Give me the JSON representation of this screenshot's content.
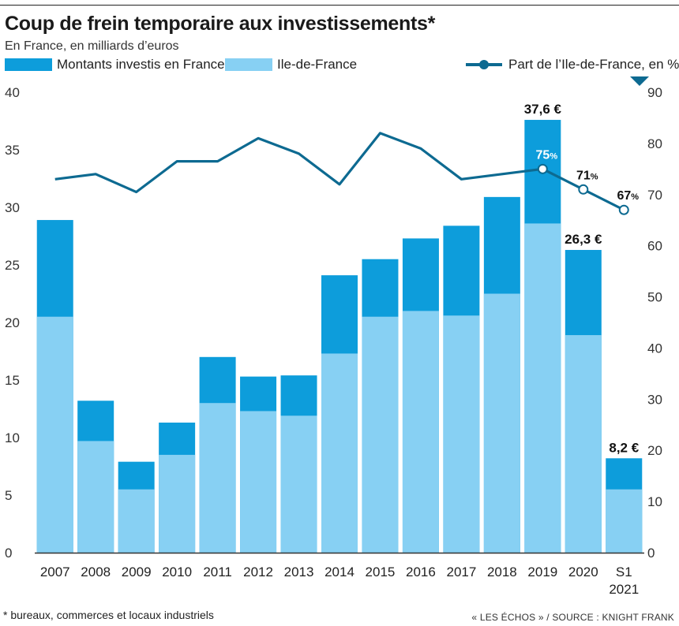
{
  "title": "Coup de frein temporaire aux investissements*",
  "subtitle": "En France, en milliards d’euros",
  "legend": {
    "total": "Montants investis en France",
    "idf": "Ile-de-France",
    "share": "Part de l’Ile-de-France, en %"
  },
  "colors": {
    "total": "#0d9ddb",
    "idf": "#87d0f3",
    "share_line": "#0d6a91",
    "axis": "#333333"
  },
  "footnote": "* bureaux, commerces et locaux industriels",
  "source": "« LES ÉCHOS » / SOURCE : KNIGHT FRANK",
  "chart_data": {
    "type": "bar",
    "stacked": true,
    "categories": [
      "2007",
      "2008",
      "2009",
      "2010",
      "2011",
      "2012",
      "2013",
      "2014",
      "2015",
      "2016",
      "2017",
      "2018",
      "2019",
      "2020",
      "S1 2021"
    ],
    "series": [
      {
        "name": "Montants investis en France",
        "values": [
          28.9,
          13.2,
          7.9,
          11.3,
          17.0,
          15.3,
          15.4,
          24.1,
          25.5,
          27.3,
          28.4,
          30.9,
          37.6,
          26.3,
          8.2
        ]
      },
      {
        "name": "Ile-de-France",
        "values": [
          20.5,
          9.7,
          5.5,
          8.5,
          13.0,
          12.3,
          11.9,
          17.3,
          20.5,
          21.0,
          20.6,
          22.5,
          28.6,
          18.9,
          5.5
        ]
      },
      {
        "name": "Part de l’Ile-de-France, en %",
        "axis": "right",
        "values": [
          73,
          74,
          70.5,
          76.5,
          76.5,
          81,
          78,
          72,
          82,
          79,
          73,
          74,
          75,
          71,
          67
        ]
      }
    ],
    "bar_labels": [
      {
        "category": "2019",
        "text": "37,6 €"
      },
      {
        "category": "2020",
        "text": "26,3 €"
      },
      {
        "category": "S1 2021",
        "text": "8,2 €"
      }
    ],
    "point_labels": [
      {
        "category": "2019",
        "value": "75",
        "unit": "%"
      },
      {
        "category": "2020",
        "value": "71",
        "unit": "%"
      },
      {
        "category": "S1 2021",
        "value": "67",
        "unit": "%"
      }
    ],
    "ylim_left": [
      0,
      40
    ],
    "ylim_right": [
      0,
      90
    ],
    "yticks_left": [
      "0",
      "5",
      "10",
      "15",
      "20",
      "25",
      "30",
      "35",
      "40"
    ],
    "yticks_right": [
      "0",
      "10",
      "20",
      "30",
      "40",
      "50",
      "60",
      "70",
      "80",
      "90"
    ],
    "grid": false,
    "legend_position": "top"
  }
}
